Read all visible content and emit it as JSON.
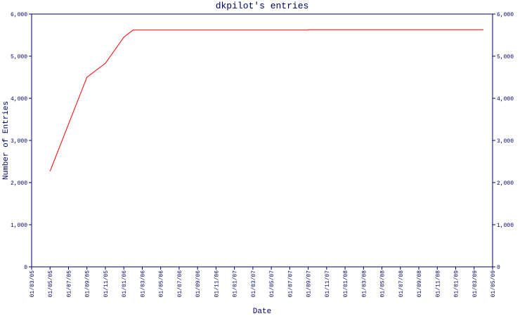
{
  "chart_data": {
    "type": "line",
    "title": "dkpilot's entries",
    "x_label": "Date",
    "y_label": "Number of Entries",
    "x": [
      "2005-05-01",
      "2005-09-01",
      "2005-11-01",
      "2006-01-01",
      "2006-02-01",
      "2007-09-01",
      "2007-09-02",
      "2009-04-01"
    ],
    "series": [
      {
        "name": "entries",
        "color": "#ff0000",
        "values": [
          2270,
          4500,
          4830,
          5450,
          5620,
          5620,
          5630,
          5630
        ]
      }
    ],
    "xlim": [
      "2005-03-01",
      "2009-05-01"
    ],
    "xticks": [
      {
        "value": "2005-03-01",
        "label": "01/03/05"
      },
      {
        "value": "2005-05-01",
        "label": "01/05/05"
      },
      {
        "value": "2005-07-01",
        "label": "01/07/05"
      },
      {
        "value": "2005-09-01",
        "label": "01/09/05"
      },
      {
        "value": "2005-11-01",
        "label": "01/11/05"
      },
      {
        "value": "2006-01-01",
        "label": "01/01/06"
      },
      {
        "value": "2006-03-01",
        "label": "01/03/06"
      },
      {
        "value": "2006-05-01",
        "label": "01/05/06"
      },
      {
        "value": "2006-07-01",
        "label": "01/07/06"
      },
      {
        "value": "2006-09-01",
        "label": "01/09/06"
      },
      {
        "value": "2006-11-01",
        "label": "01/11/06"
      },
      {
        "value": "2007-01-01",
        "label": "01/01/07"
      },
      {
        "value": "2007-03-01",
        "label": "01/03/07"
      },
      {
        "value": "2007-05-01",
        "label": "01/05/07"
      },
      {
        "value": "2007-07-01",
        "label": "01/07/07"
      },
      {
        "value": "2007-09-01",
        "label": "01/09/07"
      },
      {
        "value": "2007-11-01",
        "label": "01/11/07"
      },
      {
        "value": "2008-01-01",
        "label": "01/01/08"
      },
      {
        "value": "2008-03-01",
        "label": "01/03/08"
      },
      {
        "value": "2008-05-01",
        "label": "01/05/08"
      },
      {
        "value": "2008-07-01",
        "label": "01/07/08"
      },
      {
        "value": "2008-09-01",
        "label": "01/09/08"
      },
      {
        "value": "2008-11-01",
        "label": "01/11/08"
      },
      {
        "value": "2009-01-01",
        "label": "01/01/09"
      },
      {
        "value": "2009-03-01",
        "label": "01/03/09"
      },
      {
        "value": "2009-05-01",
        "label": "01/05/09"
      }
    ],
    "ylim": [
      0,
      6000
    ],
    "yticks": [
      0,
      {
        "value": 1000,
        "label": "1,000"
      },
      {
        "value": 2000,
        "label": "2,000"
      },
      {
        "value": 3000,
        "label": "3,000"
      },
      {
        "value": 4000,
        "label": "4,000"
      },
      {
        "value": 5000,
        "label": "5,000"
      },
      {
        "value": 6000,
        "label": "6,000"
      }
    ],
    "y2lim": [
      0,
      6000
    ],
    "y2ticks": [
      0,
      {
        "value": 1000,
        "label": "1,000"
      },
      {
        "value": 2000,
        "label": "2,000"
      },
      {
        "value": 3000,
        "label": "3,000"
      },
      {
        "value": 4000,
        "label": "4,000"
      },
      {
        "value": 5000,
        "label": "5,000"
      },
      {
        "value": 6000,
        "label": "6,000"
      }
    ],
    "axis_color": "#000066"
  }
}
